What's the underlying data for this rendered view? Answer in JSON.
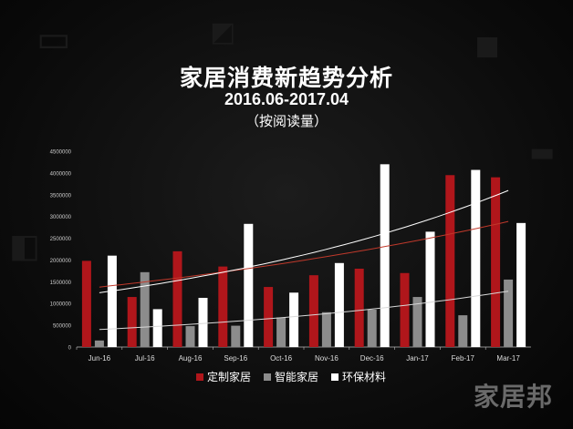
{
  "header": {
    "title": "家居消费新趋势分析",
    "subtitle": "2016.06-2017.04",
    "note": "（按阅读量）"
  },
  "watermark": "家居邦",
  "colors": {
    "background": "#0d0d0d",
    "series_red": "#b0161b",
    "series_gray": "#8c8c8c",
    "series_white": "#ffffff",
    "axis": "#cccccc"
  },
  "chart_data": {
    "type": "bar",
    "categories": [
      "Jun-16",
      "Jul-16",
      "Aug-16",
      "Sep-16",
      "Oct-16",
      "Nov-16",
      "Dec-16",
      "Jan-17",
      "Feb-17",
      "Mar-17"
    ],
    "series": [
      {
        "name": "定制家居",
        "color": "#b0161b",
        "values": [
          1980000,
          1150000,
          2200000,
          1850000,
          1380000,
          1650000,
          1800000,
          1700000,
          3950000,
          3900000
        ]
      },
      {
        "name": "智能家居",
        "color": "#8c8c8c",
        "values": [
          150000,
          1720000,
          480000,
          490000,
          680000,
          800000,
          860000,
          1150000,
          730000,
          1550000
        ]
      },
      {
        "name": "环保材料",
        "color": "#ffffff",
        "values": [
          2100000,
          870000,
          1130000,
          2830000,
          1250000,
          1930000,
          4200000,
          2650000,
          4070000,
          2850000
        ]
      }
    ],
    "trendlines": true,
    "yticks": [
      "0",
      "500000",
      "1000000",
      "1500000",
      "2000000",
      "2500000",
      "3000000",
      "3500000",
      "4000000",
      "4500000"
    ],
    "ylim": [
      0,
      4500000
    ],
    "legend_position": "bottom",
    "grid": false
  }
}
